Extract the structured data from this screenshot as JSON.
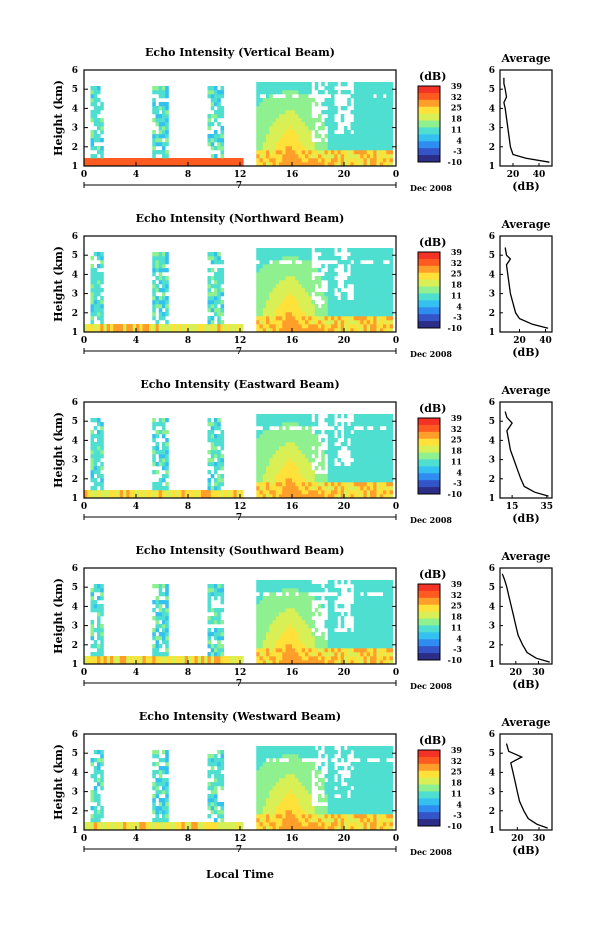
{
  "figure": {
    "xlabel": "Local Time",
    "date_label": "Dec 2008",
    "day_label": "7",
    "colorbar_unit": "(dB)",
    "colorbar_ticks": [
      "39",
      "32",
      "25",
      "18",
      "11",
      "4",
      "-3",
      "-10"
    ],
    "avg_title": "Average",
    "avg_xlabel": "(dB)",
    "ylabel": "Height (km)",
    "colors": {
      "scale": [
        "#2b2d86",
        "#3355c8",
        "#2f8cf0",
        "#35c1f0",
        "#4fdfd0",
        "#8ef08e",
        "#d8f055",
        "#ffe13a",
        "#ff9f2a",
        "#ff5a20",
        "#f43226"
      ]
    }
  },
  "chart_data": [
    {
      "type": "heatmap",
      "title": "Echo Intensity (Vertical Beam)",
      "xlabel": "Local Time",
      "ylabel": "Height (km)",
      "x_ticks": [
        "0",
        "4",
        "8",
        "12",
        "16",
        "20",
        "0"
      ],
      "y_ticks": [
        "1",
        "2",
        "3",
        "4",
        "5",
        "6"
      ],
      "xlim": [
        0,
        24
      ],
      "ylim": [
        1,
        6
      ],
      "colorbar": {
        "unit": "(dB)",
        "range": [
          -10,
          39
        ],
        "ticks": [
          39,
          32,
          25,
          18,
          11,
          4,
          -3,
          -10
        ]
      },
      "average_profile": {
        "title": "Average",
        "xlabel": "(dB)",
        "x_ticks": [
          "20",
          "40"
        ],
        "xlim": [
          10,
          50
        ],
        "height_km": [
          1.2,
          1.4,
          1.6,
          2.0,
          2.5,
          3.0,
          3.5,
          4.0,
          4.3,
          4.6,
          5.0,
          5.3,
          5.6
        ],
        "value_db": [
          48,
          30,
          20,
          18,
          17,
          16,
          15,
          14,
          13,
          15,
          14,
          13,
          13
        ]
      }
    },
    {
      "type": "heatmap",
      "title": "Echo Intensity (Northward Beam)",
      "xlabel": "Local Time",
      "ylabel": "Height (km)",
      "x_ticks": [
        "0",
        "4",
        "8",
        "12",
        "16",
        "20",
        "0"
      ],
      "y_ticks": [
        "1",
        "2",
        "3",
        "4",
        "5",
        "6"
      ],
      "xlim": [
        0,
        24
      ],
      "ylim": [
        1,
        6
      ],
      "colorbar": {
        "unit": "(dB)",
        "range": [
          -10,
          39
        ],
        "ticks": [
          39,
          32,
          25,
          18,
          11,
          4,
          -3,
          -10
        ]
      },
      "average_profile": {
        "title": "Average",
        "xlabel": "(dB)",
        "x_ticks": [
          "20",
          "40"
        ],
        "xlim": [
          5,
          45
        ],
        "height_km": [
          1.2,
          1.4,
          1.7,
          2.0,
          2.5,
          3.0,
          3.5,
          4.0,
          4.5,
          4.8,
          5.0,
          5.4
        ],
        "value_db": [
          42,
          30,
          20,
          17,
          15,
          13,
          12,
          11,
          10,
          13,
          10,
          9
        ]
      }
    },
    {
      "type": "heatmap",
      "title": "Echo Intensity (Eastward Beam)",
      "xlabel": "Local Time",
      "ylabel": "Height (km)",
      "x_ticks": [
        "0",
        "4",
        "8",
        "12",
        "16",
        "20",
        "0"
      ],
      "y_ticks": [
        "1",
        "2",
        "3",
        "4",
        "5",
        "6"
      ],
      "xlim": [
        0,
        24
      ],
      "ylim": [
        1,
        6
      ],
      "colorbar": {
        "unit": "(dB)",
        "range": [
          -10,
          39
        ],
        "ticks": [
          39,
          32,
          25,
          18,
          11,
          4,
          -3,
          -10
        ]
      },
      "average_profile": {
        "title": "Average",
        "xlabel": "(dB)",
        "x_ticks": [
          "15",
          "35"
        ],
        "xlim": [
          8,
          38
        ],
        "height_km": [
          1.1,
          1.3,
          1.6,
          2.0,
          2.5,
          3.0,
          3.5,
          4.0,
          4.5,
          4.9,
          5.2,
          5.5
        ],
        "value_db": [
          36,
          28,
          22,
          20,
          18,
          16,
          14,
          13,
          12,
          15,
          12,
          11
        ]
      }
    },
    {
      "type": "heatmap",
      "title": "Echo Intensity (Southward Beam)",
      "xlabel": "Local Time",
      "ylabel": "Height (km)",
      "x_ticks": [
        "0",
        "4",
        "8",
        "12",
        "16",
        "20",
        "0"
      ],
      "y_ticks": [
        "1",
        "2",
        "3",
        "4",
        "5",
        "6"
      ],
      "xlim": [
        0,
        24
      ],
      "ylim": [
        1,
        6
      ],
      "colorbar": {
        "unit": "(dB)",
        "range": [
          -10,
          39
        ],
        "ticks": [
          39,
          32,
          25,
          18,
          11,
          4,
          -3,
          -10
        ]
      },
      "average_profile": {
        "title": "Average",
        "xlabel": "(dB)",
        "x_ticks": [
          "20",
          "30"
        ],
        "xlim": [
          13,
          36
        ],
        "height_km": [
          1.1,
          1.3,
          1.6,
          2.0,
          2.5,
          3.0,
          3.5,
          4.0,
          4.5,
          5.0,
          5.4,
          5.7
        ],
        "value_db": [
          35,
          29,
          25,
          23,
          21,
          20,
          19,
          18,
          17,
          16,
          15,
          14
        ]
      }
    },
    {
      "type": "heatmap",
      "title": "Echo Intensity (Westward Beam)",
      "xlabel": "Local Time",
      "ylabel": "Height (km)",
      "x_ticks": [
        "0",
        "4",
        "8",
        "12",
        "16",
        "20",
        "0"
      ],
      "y_ticks": [
        "1",
        "2",
        "3",
        "4",
        "5",
        "6"
      ],
      "xlim": [
        0,
        24
      ],
      "ylim": [
        1,
        6
      ],
      "colorbar": {
        "unit": "(dB)",
        "range": [
          -10,
          39
        ],
        "ticks": [
          39,
          32,
          25,
          18,
          11,
          4,
          -3,
          -10
        ]
      },
      "average_profile": {
        "title": "Average",
        "xlabel": "(dB)",
        "x_ticks": [
          "20",
          "30"
        ],
        "xlim": [
          12,
          36
        ],
        "height_km": [
          1.1,
          1.3,
          1.6,
          2.0,
          2.5,
          3.0,
          3.5,
          4.0,
          4.5,
          4.8,
          5.1,
          5.5
        ],
        "value_db": [
          34,
          29,
          25,
          23,
          21,
          20,
          19,
          18,
          17,
          22,
          16,
          15
        ]
      }
    }
  ]
}
